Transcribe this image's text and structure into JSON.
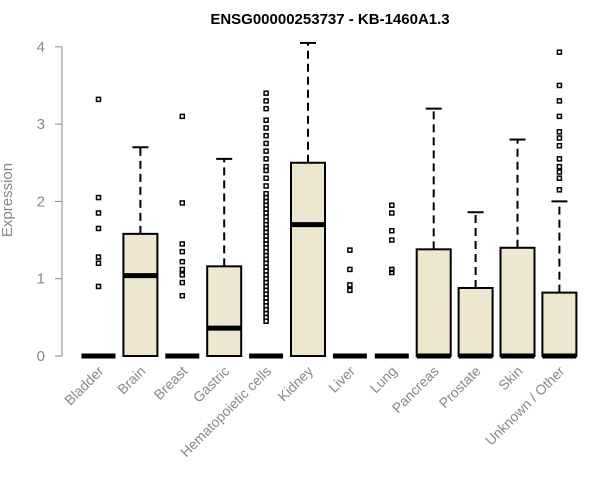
{
  "chart_data": {
    "type": "boxplot",
    "title": "ENSG00000253737 - KB-1460A1.3",
    "xlabel": "",
    "ylabel": "Expression",
    "ylim": [
      0,
      4.05
    ],
    "yticks": [
      0,
      1,
      2,
      3,
      4
    ],
    "grid": false,
    "legend": "none",
    "colors": {
      "box_fill": "#ede7cf",
      "stroke": "#000000",
      "axis_text": "#888888"
    },
    "categories": [
      "Bladder",
      "Brain",
      "Breast",
      "Gastric",
      "Hematopoietic cells",
      "Kidney",
      "Liver",
      "Lung",
      "Pancreas",
      "Prostate",
      "Skin",
      "Unknown / Other"
    ],
    "boxes": [
      {
        "q1": 0,
        "median": 0,
        "q3": 0,
        "whisker_low": 0,
        "whisker_high": 0,
        "outliers": [
          0.9,
          1.2,
          1.28,
          1.65,
          1.85,
          2.05,
          3.32
        ]
      },
      {
        "q1": 0,
        "median": 1.04,
        "q3": 1.58,
        "whisker_low": 0,
        "whisker_high": 2.7,
        "outliers": []
      },
      {
        "q1": 0,
        "median": 0,
        "q3": 0,
        "whisker_low": 0,
        "whisker_high": 0,
        "outliers": [
          0.78,
          0.95,
          1.05,
          1.12,
          1.22,
          1.35,
          1.45,
          1.98,
          3.1
        ]
      },
      {
        "q1": 0,
        "median": 0.36,
        "q3": 1.16,
        "whisker_low": 0,
        "whisker_high": 2.55,
        "outliers": []
      },
      {
        "q1": 0,
        "median": 0,
        "q3": 0,
        "whisker_low": 0,
        "whisker_high": 0,
        "outliers": [
          0.45,
          0.5,
          0.55,
          0.6,
          0.65,
          0.7,
          0.75,
          0.8,
          0.85,
          0.9,
          0.95,
          1.0,
          1.05,
          1.1,
          1.15,
          1.2,
          1.25,
          1.3,
          1.35,
          1.4,
          1.45,
          1.5,
          1.55,
          1.6,
          1.65,
          1.7,
          1.75,
          1.8,
          1.85,
          1.9,
          1.95,
          2.0,
          2.05,
          2.1,
          2.2,
          2.3,
          2.4,
          2.45,
          2.55,
          2.65,
          2.75,
          2.85,
          2.95,
          3.05,
          3.2,
          3.3,
          3.4
        ]
      },
      {
        "q1": 0,
        "median": 1.7,
        "q3": 2.5,
        "whisker_low": 0,
        "whisker_high": 4.05,
        "outliers": []
      },
      {
        "q1": 0,
        "median": 0,
        "q3": 0,
        "whisker_low": 0,
        "whisker_high": 0,
        "outliers": [
          0.85,
          0.92,
          1.12,
          1.37
        ]
      },
      {
        "q1": 0,
        "median": 0,
        "q3": 0,
        "whisker_low": 0,
        "whisker_high": 0,
        "outliers": [
          1.08,
          1.12,
          1.5,
          1.62,
          1.85,
          1.95
        ]
      },
      {
        "q1": 0,
        "median": 0,
        "q3": 1.38,
        "whisker_low": 0,
        "whisker_high": 3.2,
        "outliers": []
      },
      {
        "q1": 0,
        "median": 0,
        "q3": 0.88,
        "whisker_low": 0,
        "whisker_high": 1.86,
        "outliers": []
      },
      {
        "q1": 0,
        "median": 0,
        "q3": 1.4,
        "whisker_low": 0,
        "whisker_high": 2.8,
        "outliers": []
      },
      {
        "q1": 0,
        "median": 0,
        "q3": 0.82,
        "whisker_low": 0,
        "whisker_high": 2.0,
        "outliers": [
          2.15,
          2.3,
          2.38,
          2.45,
          2.55,
          2.72,
          2.82,
          2.9,
          3.1,
          3.3,
          3.5,
          3.93
        ]
      }
    ]
  }
}
